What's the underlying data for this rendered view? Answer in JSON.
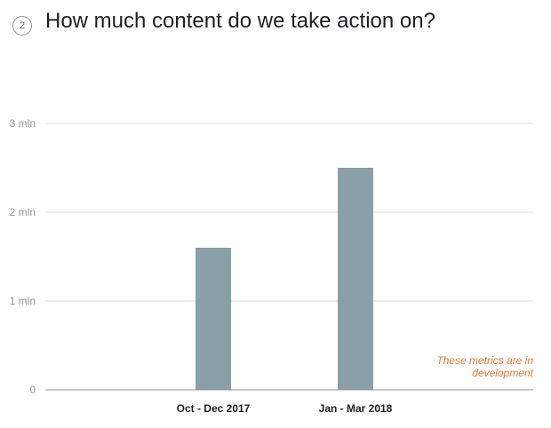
{
  "header": {
    "step_number": "2",
    "title": "How much content do we take action on?"
  },
  "note": {
    "line1": "These metrics are in",
    "line2": "development",
    "color": "#e07b39"
  },
  "colors": {
    "bar": "#8a9fa8",
    "grid": "#dddfe2",
    "axis": "#90949c"
  },
  "chart_data": {
    "type": "bar",
    "categories": [
      "Oct - Dec 2017",
      "Jan - Mar 2018"
    ],
    "values": [
      1.6,
      2.5
    ],
    "value_units": "million",
    "title": "",
    "xlabel": "",
    "ylabel": "",
    "ylim": [
      0,
      3
    ],
    "yticks": [
      0,
      1,
      2,
      3
    ],
    "ytick_labels": [
      "0",
      "1 mln",
      "2 mln",
      "3 mln"
    ],
    "grid": true,
    "legend": "none"
  }
}
